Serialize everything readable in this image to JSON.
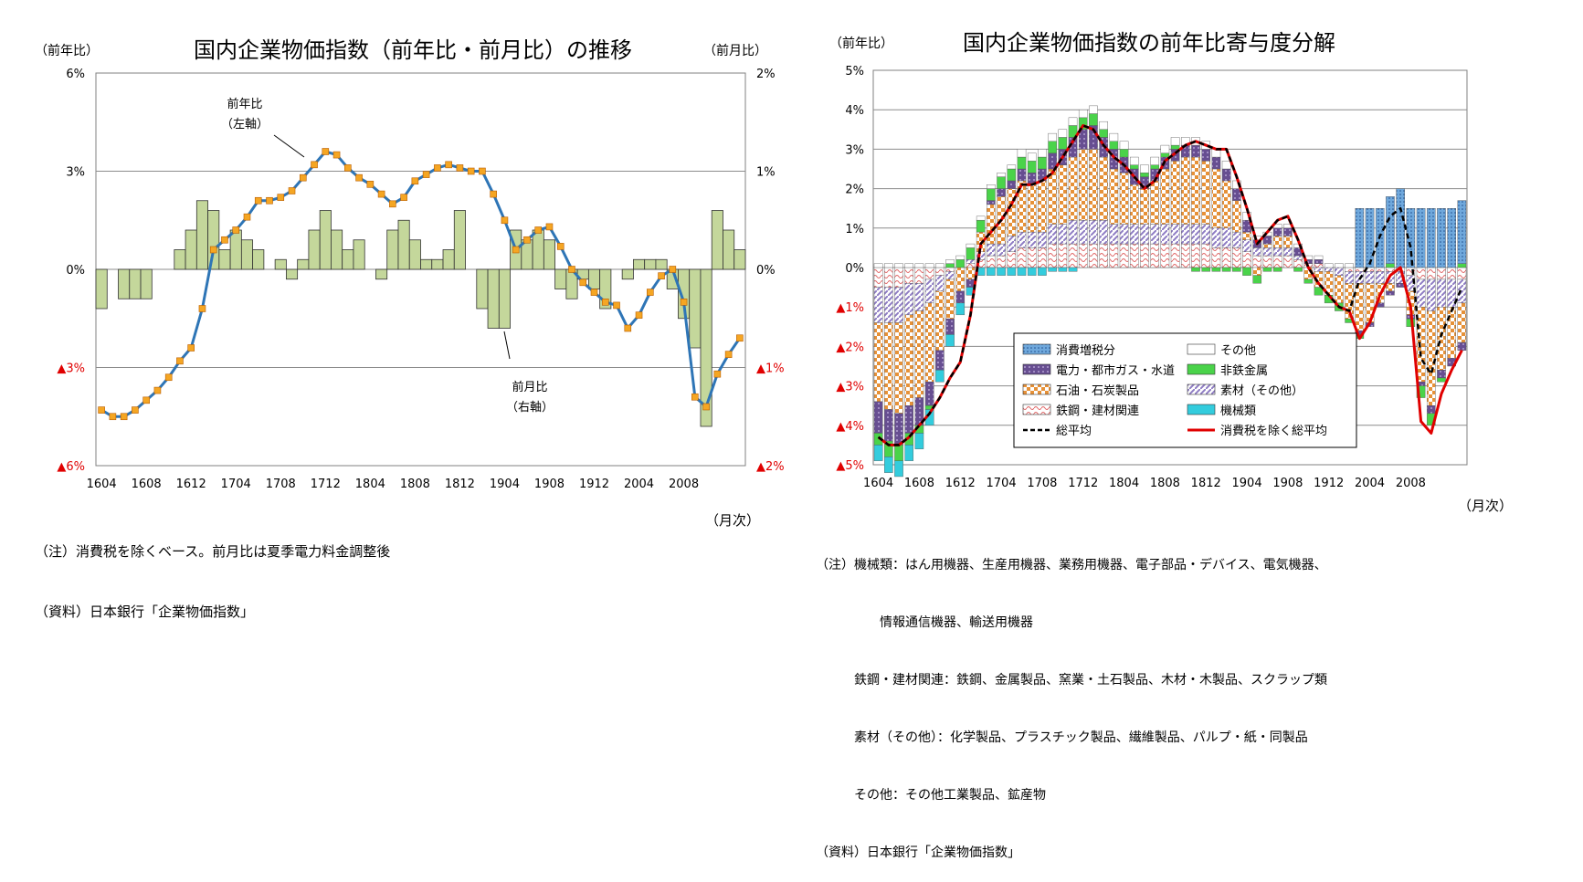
{
  "chart_data": [
    {
      "type": "bar+line",
      "title": "国内企業物価指数（前年比・前月比）の推移",
      "left_unit": "（前年比）",
      "right_unit": "（前月比）",
      "x_unit": "（月次）",
      "left_ticks": [
        "6%",
        "3%",
        "0%",
        "▲3%",
        "▲6%"
      ],
      "right_ticks": [
        "2%",
        "1%",
        "0%",
        "▲1%",
        "▲2%"
      ],
      "ylim_left": [
        -6,
        6
      ],
      "ylim_right": [
        -2,
        2
      ],
      "x_ticks": [
        "1604",
        "1608",
        "1612",
        "1704",
        "1708",
        "1712",
        "1804",
        "1808",
        "1812",
        "1904",
        "1908",
        "1912",
        "2004",
        "2008"
      ],
      "series": [
        {
          "name": "前年比（左軸）",
          "kind": "line",
          "axis": "left",
          "color": "#2e75b6",
          "marker_color": "#f5a623",
          "values": [
            -4.3,
            -4.5,
            -4.5,
            -4.3,
            -4.0,
            -3.7,
            -3.3,
            -2.8,
            -2.4,
            -1.2,
            0.6,
            0.9,
            1.2,
            1.6,
            2.1,
            2.1,
            2.2,
            2.4,
            2.8,
            3.2,
            3.6,
            3.5,
            3.1,
            2.8,
            2.6,
            2.3,
            2.0,
            2.2,
            2.7,
            2.9,
            3.1,
            3.2,
            3.1,
            3.0,
            3.0,
            2.3,
            1.5,
            0.6,
            0.9,
            1.2,
            1.3,
            0.7,
            0.0,
            -0.4,
            -0.7,
            -1.0,
            -1.1,
            -1.8,
            -1.4,
            -0.7,
            -0.2,
            0.0,
            -1.0,
            -3.9,
            -4.2,
            -3.2,
            -2.6,
            -2.1
          ]
        },
        {
          "name": "前月比（右軸）",
          "kind": "bar",
          "axis": "right",
          "color": "#c4d79b",
          "values": [
            -0.4,
            0.0,
            -0.3,
            -0.3,
            -0.3,
            0.0,
            0.0,
            0.2,
            0.4,
            0.7,
            0.6,
            0.2,
            0.4,
            0.3,
            0.2,
            0.0,
            0.1,
            -0.1,
            0.1,
            0.4,
            0.6,
            0.4,
            0.2,
            0.3,
            0.0,
            -0.1,
            0.4,
            0.5,
            0.3,
            0.1,
            0.1,
            0.2,
            0.6,
            0.0,
            -0.4,
            -0.6,
            -0.6,
            0.4,
            0.3,
            0.4,
            0.3,
            -0.2,
            -0.3,
            -0.1,
            -0.2,
            -0.4,
            0.0,
            -0.1,
            0.1,
            0.1,
            0.1,
            -0.2,
            -0.5,
            -0.8,
            -1.6,
            0.6,
            0.4,
            0.2
          ]
        }
      ],
      "annotations": [
        {
          "text": "前年比\n（左軸）"
        },
        {
          "text": "前月比\n（右軸）"
        }
      ]
    },
    {
      "type": "stacked-bar+line",
      "title": "国内企業物価指数の前年比寄与度分解",
      "y_unit": "（前年比）",
      "x_unit": "（月次）",
      "ylim": [
        -5,
        5
      ],
      "y_ticks": [
        "5%",
        "4%",
        "3%",
        "2%",
        "1%",
        "0%",
        "▲1%",
        "▲2%",
        "▲3%",
        "▲4%",
        "▲5%"
      ],
      "x_ticks": [
        "1604",
        "1608",
        "1612",
        "1704",
        "1708",
        "1712",
        "1804",
        "1808",
        "1812",
        "1904",
        "1908",
        "1912",
        "2004",
        "2008"
      ],
      "legend": [
        {
          "name": "消費増税分",
          "color": "#6fa8dc",
          "pattern": "dots"
        },
        {
          "name": "その他",
          "color": "#ffffff"
        },
        {
          "name": "電力・都市ガス・水道",
          "color": "#674e91",
          "pattern": "dots"
        },
        {
          "name": "非鉄金属",
          "color": "#4ad34a"
        },
        {
          "name": "石油・石炭製品",
          "color": "#e69138",
          "pattern": "check"
        },
        {
          "name": "素材（その他）",
          "color": "#b4a7d6",
          "pattern": "diag"
        },
        {
          "name": "鉄鋼・建材関連",
          "color": "#f4b6b6",
          "pattern": "wave"
        },
        {
          "name": "機械類",
          "color": "#33ccdd"
        },
        {
          "name": "総平均",
          "color": "#000000",
          "pattern": "dashed-line"
        },
        {
          "name": "消費税を除く総平均",
          "color": "#e00000",
          "pattern": "line"
        }
      ],
      "series_order": [
        "鉄鋼・建材関連",
        "素材（その他）",
        "石油・石炭製品",
        "電力・都市ガス・水道",
        "非鉄金属",
        "機械類",
        "その他",
        "消費増税分"
      ],
      "components": {
        "石油・石炭製品": [
          -2.0,
          -2.2,
          -2.3,
          -2.3,
          -2.2,
          -2.0,
          -1.5,
          -1.0,
          -0.6,
          -0.3,
          0.5,
          1.0,
          1.2,
          1.2,
          1.3,
          1.2,
          1.3,
          1.4,
          1.5,
          1.6,
          1.8,
          1.8,
          1.6,
          1.4,
          1.3,
          1.0,
          0.9,
          1.1,
          1.4,
          1.6,
          1.7,
          1.7,
          1.6,
          1.5,
          1.2,
          0.8,
          0.2,
          -0.2,
          0.1,
          0.3,
          0.3,
          0.0,
          -0.3,
          -0.4,
          -0.6,
          -0.7,
          -0.9,
          -1.2,
          -1.0,
          -0.5,
          -0.2,
          0.0,
          -0.6,
          -1.9,
          -2.4,
          -1.6,
          -1.3,
          -1.0
        ],
        "素材（その他）": [
          -0.9,
          -0.9,
          -0.9,
          -0.8,
          -0.7,
          -0.6,
          -0.4,
          -0.2,
          0.0,
          0.1,
          0.2,
          0.3,
          0.3,
          0.4,
          0.4,
          0.4,
          0.4,
          0.5,
          0.5,
          0.6,
          0.6,
          0.6,
          0.6,
          0.5,
          0.5,
          0.5,
          0.5,
          0.5,
          0.5,
          0.5,
          0.5,
          0.5,
          0.5,
          0.5,
          0.5,
          0.4,
          0.3,
          0.2,
          0.2,
          0.2,
          0.2,
          0.1,
          0.0,
          -0.1,
          -0.1,
          -0.2,
          -0.3,
          -0.3,
          -0.3,
          -0.3,
          -0.3,
          -0.3,
          -0.4,
          -0.7,
          -0.8,
          -0.7,
          -0.7,
          -0.6
        ],
        "鉄鋼・建材関連": [
          -0.5,
          -0.5,
          -0.5,
          -0.4,
          -0.4,
          -0.3,
          -0.2,
          -0.1,
          0.0,
          0.1,
          0.2,
          0.3,
          0.3,
          0.4,
          0.5,
          0.5,
          0.5,
          0.6,
          0.6,
          0.6,
          0.6,
          0.6,
          0.6,
          0.6,
          0.6,
          0.6,
          0.6,
          0.6,
          0.6,
          0.6,
          0.6,
          0.6,
          0.6,
          0.5,
          0.5,
          0.5,
          0.4,
          0.3,
          0.3,
          0.3,
          0.3,
          0.2,
          0.1,
          0.1,
          0.0,
          0.0,
          -0.1,
          -0.1,
          -0.1,
          -0.1,
          -0.1,
          -0.1,
          -0.2,
          -0.3,
          -0.3,
          -0.3,
          -0.3,
          -0.3
        ],
        "電力・都市ガス・水道": [
          -0.8,
          -0.8,
          -0.8,
          -0.7,
          -0.7,
          -0.6,
          -0.5,
          -0.4,
          -0.3,
          -0.2,
          0.0,
          0.1,
          0.2,
          0.2,
          0.3,
          0.3,
          0.3,
          0.4,
          0.4,
          0.5,
          0.5,
          0.6,
          0.5,
          0.5,
          0.4,
          0.4,
          0.3,
          0.3,
          0.3,
          0.3,
          0.3,
          0.3,
          0.3,
          0.3,
          0.3,
          0.3,
          0.3,
          0.2,
          0.2,
          0.2,
          0.2,
          0.2,
          0.1,
          0.1,
          0.0,
          0.0,
          0.0,
          -0.1,
          -0.1,
          -0.1,
          -0.1,
          -0.1,
          -0.1,
          -0.1,
          -0.2,
          -0.2,
          -0.2,
          -0.2
        ],
        "非鉄金属": [
          -0.3,
          -0.4,
          -0.4,
          -0.3,
          -0.2,
          -0.1,
          0.0,
          0.1,
          0.2,
          0.3,
          0.3,
          0.3,
          0.3,
          0.3,
          0.3,
          0.3,
          0.3,
          0.3,
          0.3,
          0.3,
          0.3,
          0.3,
          0.2,
          0.2,
          0.2,
          0.1,
          0.1,
          0.1,
          0.1,
          0.1,
          0.0,
          -0.1,
          -0.1,
          -0.1,
          -0.1,
          -0.1,
          -0.2,
          -0.2,
          -0.1,
          -0.1,
          0.0,
          -0.1,
          -0.1,
          -0.2,
          -0.2,
          -0.2,
          -0.1,
          -0.1,
          0.0,
          0.0,
          0.1,
          0.0,
          -0.2,
          -0.3,
          -0.3,
          -0.1,
          0.0,
          0.1
        ],
        "機械類": [
          -0.4,
          -0.4,
          -0.4,
          -0.4,
          -0.4,
          -0.4,
          -0.3,
          -0.3,
          -0.3,
          -0.2,
          -0.2,
          -0.2,
          -0.2,
          -0.2,
          -0.2,
          -0.2,
          -0.2,
          -0.1,
          -0.1,
          -0.1,
          0.0,
          0.0,
          0.0,
          0.0,
          0.0,
          0.0,
          0.0,
          0.0,
          0.0,
          0.0,
          0.0,
          0.0,
          0.0,
          0.0,
          0.0,
          0.0,
          0.0,
          0.0,
          0.0,
          0.0,
          0.0,
          0.0,
          0.0,
          0.0,
          0.0,
          0.0,
          0.0,
          0.0,
          0.0,
          0.0,
          0.0,
          0.0,
          0.0,
          0.0,
          0.0,
          0.0,
          0.0,
          0.0
        ],
        "その他": [
          0.1,
          0.1,
          0.1,
          0.1,
          0.1,
          0.1,
          0.1,
          0.1,
          0.1,
          0.1,
          0.1,
          0.1,
          0.1,
          0.1,
          0.2,
          0.2,
          0.2,
          0.2,
          0.2,
          0.2,
          0.2,
          0.2,
          0.2,
          0.2,
          0.2,
          0.2,
          0.2,
          0.2,
          0.2,
          0.2,
          0.2,
          0.2,
          0.2,
          0.2,
          0.2,
          0.2,
          0.2,
          0.1,
          0.1,
          0.1,
          0.1,
          0.1,
          0.1,
          0.1,
          0.1,
          0.1,
          0.1,
          0.0,
          0.0,
          0.0,
          0.0,
          0.0,
          0.0,
          0.0,
          0.0,
          0.0,
          0.0,
          0.0
        ],
        "消費増税分": [
          0,
          0,
          0,
          0,
          0,
          0,
          0,
          0,
          0,
          0,
          0,
          0,
          0,
          0,
          0,
          0,
          0,
          0,
          0,
          0,
          0,
          0,
          0,
          0,
          0,
          0,
          0,
          0,
          0,
          0,
          0,
          0,
          0,
          0,
          0,
          0,
          0,
          0,
          0,
          0,
          0,
          0,
          0,
          0,
          0,
          0,
          0,
          1.5,
          1.5,
          1.5,
          1.7,
          2.0,
          1.5,
          1.5,
          1.5,
          1.5,
          1.5,
          1.6
        ]
      },
      "lines": {
        "総平均": [
          -4.3,
          -4.5,
          -4.5,
          -4.3,
          -4.0,
          -3.7,
          -3.3,
          -2.8,
          -2.4,
          -1.2,
          0.6,
          0.9,
          1.2,
          1.6,
          2.1,
          2.1,
          2.2,
          2.4,
          2.8,
          3.2,
          3.6,
          3.5,
          3.1,
          2.8,
          2.6,
          2.3,
          2.0,
          2.2,
          2.7,
          2.9,
          3.1,
          3.2,
          3.1,
          3.0,
          3.0,
          2.3,
          1.5,
          0.6,
          0.9,
          1.2,
          1.3,
          0.7,
          0.0,
          -0.4,
          -0.7,
          -1.0,
          -1.1,
          -0.3,
          0.1,
          0.8,
          1.3,
          1.5,
          0.5,
          -2.3,
          -2.7,
          -1.7,
          -1.1,
          -0.5
        ],
        "消費税を除く総平均": [
          -4.3,
          -4.5,
          -4.5,
          -4.3,
          -4.0,
          -3.7,
          -3.3,
          -2.8,
          -2.4,
          -1.2,
          0.6,
          0.9,
          1.2,
          1.6,
          2.1,
          2.1,
          2.2,
          2.4,
          2.8,
          3.2,
          3.6,
          3.5,
          3.1,
          2.8,
          2.6,
          2.3,
          2.0,
          2.2,
          2.7,
          2.9,
          3.1,
          3.2,
          3.1,
          3.0,
          3.0,
          2.3,
          1.5,
          0.6,
          0.9,
          1.2,
          1.3,
          0.7,
          0.0,
          -0.4,
          -0.7,
          -1.0,
          -1.1,
          -1.8,
          -1.4,
          -0.7,
          -0.2,
          0.0,
          -1.0,
          -3.9,
          -4.2,
          -3.2,
          -2.6,
          -2.1
        ]
      }
    }
  ],
  "left_notes": {
    "note1": "（注）消費税を除くベース。前月比は夏季電力料金調整後",
    "note2": "（資料）日本銀行「企業物価指数」"
  },
  "right_notes": {
    "line1": "（注）機械類：はん用機器、生産用機器、業務用機器、電子部品・デバイス、電気機器、",
    "line2": "　　　　　情報通信機器、輸送用機器",
    "line3": "　　　鉄鋼・建材関連：鉄鋼、金属製品、窯業・土石製品、木材・木製品、スクラップ類",
    "line4": "　　　素材（その他）：化学製品、プラスチック製品、繊維製品、パルプ・紙・同製品",
    "line5": "　　　その他：その他工業製品、鉱産物",
    "line6": "（資料）日本銀行「企業物価指数」"
  }
}
